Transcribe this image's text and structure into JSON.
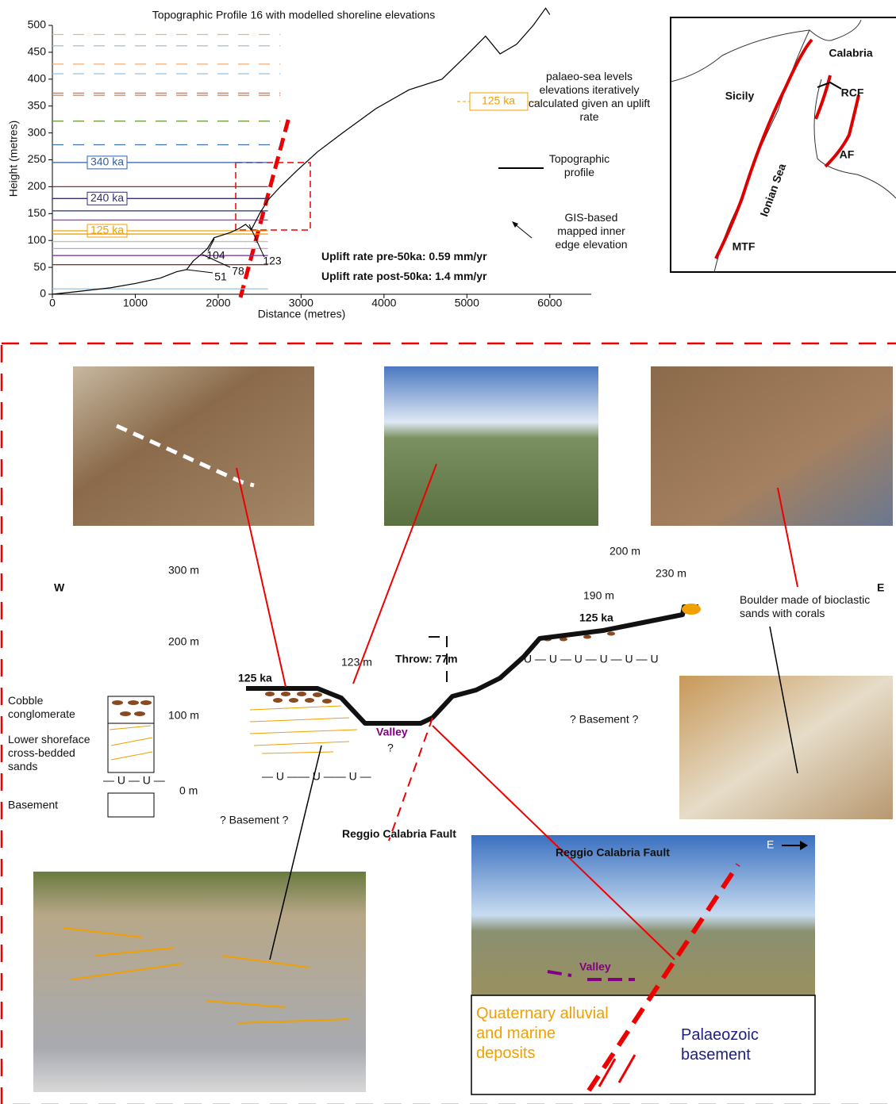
{
  "chart_data": {
    "type": "line",
    "title": "Topographic Profile 16 with modelled shoreline elevations",
    "x_label": "Distance (metres)",
    "y_label": "Height (metres)",
    "x": [
      0,
      300,
      700,
      1000,
      1300,
      1500,
      1620,
      1700,
      1800,
      1870,
      1950,
      2050,
      2150,
      2250,
      2330,
      2400,
      2500,
      2600,
      2750,
      2950,
      3200,
      3500,
      3900,
      4300,
      4700,
      5000,
      5225,
      5400,
      5600,
      5800,
      5950,
      6000
    ],
    "series": [
      {
        "name": "Topographic profile",
        "color": "#000000",
        "values": [
          0,
          5,
          12,
          20,
          30,
          42,
          46,
          62,
          75,
          85,
          105,
          110,
          115,
          122,
          130,
          120,
          150,
          175,
          200,
          230,
          265,
          300,
          345,
          380,
          400,
          445,
          480,
          447,
          465,
          500,
          532,
          520
        ]
      }
    ],
    "xlim": [
      0,
      6500
    ],
    "xticks": [
      0,
      1000,
      2000,
      3000,
      4000,
      5000,
      6000
    ],
    "ylim": [
      0,
      500
    ],
    "yticks": [
      0,
      50,
      100,
      150,
      200,
      250,
      300,
      350,
      400,
      450,
      500
    ],
    "shorelines": [
      {
        "value": 483,
        "color": "#f0b080",
        "dashed": true
      },
      {
        "value": 462,
        "color": "#9cc0e0",
        "dashed": true
      },
      {
        "value": 428,
        "color": "#f0b080",
        "dashed": true
      },
      {
        "value": 410,
        "color": "#9cc0e0",
        "dashed": true
      },
      {
        "value": 374,
        "color": "#c08060",
        "dashed": true
      },
      {
        "value": 370,
        "color": "#c08060",
        "dashed": true
      },
      {
        "value": 322,
        "color": "#70a040",
        "dashed": true
      },
      {
        "value": 278,
        "color": "#4070c0",
        "dashed": true
      },
      {
        "value": 245,
        "color": "#3060a0",
        "dashed": false,
        "label": "340 ka"
      },
      {
        "value": 200,
        "color": "#903030",
        "dashed": false
      },
      {
        "value": 178,
        "color": "#303070",
        "dashed": false,
        "label": "240 ka"
      },
      {
        "value": 155,
        "color": "#203080",
        "dashed": false
      },
      {
        "value": 138,
        "color": "#a040c0",
        "dashed": false
      },
      {
        "value": 118,
        "color": "#f0a000",
        "dashed": false,
        "label": "125 ka"
      },
      {
        "value": 112,
        "color": "#f0a000",
        "dashed": false
      },
      {
        "value": 98,
        "color": "#c0c0c0",
        "dashed": false
      },
      {
        "value": 85,
        "color": "#c0a0e0",
        "dashed": false
      },
      {
        "value": 72,
        "color": "#8040a0",
        "dashed": false
      },
      {
        "value": 55,
        "color": "#903030",
        "dashed": false
      },
      {
        "value": 10,
        "color": "#9cc0e0",
        "dashed": false
      }
    ],
    "inner_edges": [
      51,
      78,
      104,
      123
    ],
    "annotations": [
      "Uplift rate pre-50ka: 0.59 mm/yr",
      "Uplift rate post-50ka: 1.4 mm/yr"
    ],
    "legend": {
      "sea_level_sample": "125 ka",
      "sea_level": "palaeo-sea levels elevations iteratively calculated given an uplift rate",
      "inner_edge": "GIS-based mapped inner edge elevation"
    }
  },
  "map": {
    "labels": [
      "Calabria",
      "Sicily",
      "RCF",
      "Ionian Sea",
      "AF",
      "MTF"
    ]
  },
  "section": {
    "west": "W",
    "east": "E",
    "elevations": [
      "300 m",
      "200 m",
      "100 m",
      "0 m"
    ],
    "terrace_west": "125 ka",
    "terrace_west_height": "123 m",
    "throw": "Throw: 77m",
    "valley": "Valley",
    "valley_question": "?",
    "terrace_east": "125 ka",
    "heights_east": [
      "190 m",
      "200 m",
      "230 m"
    ],
    "boulder": "Boulder made of bioclastic sands with corals",
    "basement_west": "? Basement ?",
    "basement_east": "? Basement ?",
    "fault": "Reggio Calabria Fault",
    "legend": [
      "Cobble conglomerate",
      "Lower shoreface cross-bedded sands",
      "Basement"
    ]
  },
  "photo": {
    "title": "Reggio Calabria Fault",
    "direction": "E",
    "valley": "Valley",
    "quaternary": "Quaternary alluvial and marine deposits",
    "palaeozoic": "Palaeozoic basement"
  }
}
